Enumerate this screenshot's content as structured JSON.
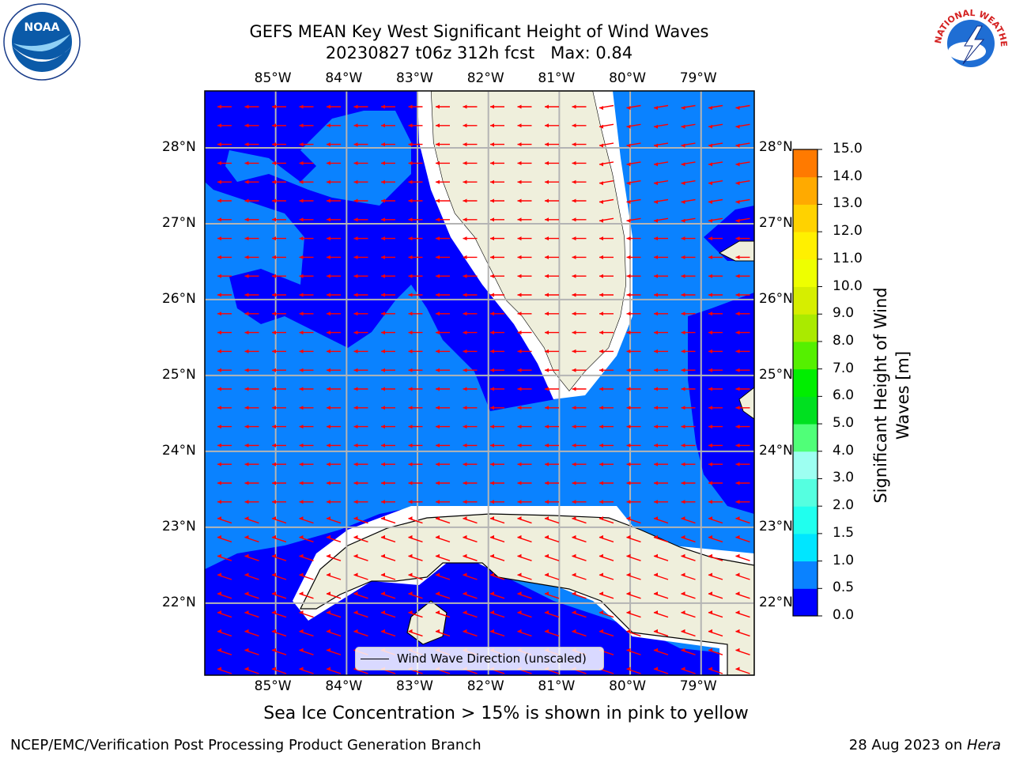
{
  "title": {
    "line1": "GEFS MEAN Key West Significant Height of Wind Waves",
    "line2": "20230827 t06z 312h fcst   Max: 0.84"
  },
  "map": {
    "lon_ticks": [
      "85°W",
      "84°W",
      "83°W",
      "82°W",
      "81°W",
      "80°W",
      "79°W"
    ],
    "lat_ticks": [
      "28°N",
      "27°N",
      "26°N",
      "25°N",
      "24°N",
      "23°N",
      "22°N"
    ],
    "lon_range": [
      -86.0,
      -78.25
    ],
    "lat_range": [
      21.05,
      28.75
    ],
    "colors": {
      "band_0_0_5": "#0000ff",
      "band_0_5_1_0": "#0a82ff",
      "land": "#efefdc",
      "arrow": "#ff0000",
      "grid": "#b4b4b4"
    }
  },
  "legend": {
    "label": "Wind Wave Direction (unscaled)"
  },
  "colorbar": {
    "label_line1": "Significant Height of Wind",
    "label_line2": "Waves [m]",
    "ticks": [
      "15.0",
      "14.0",
      "13.0",
      "12.0",
      "11.0",
      "10.0",
      "9.0",
      "8.0",
      "7.0",
      "6.0",
      "5.0",
      "4.0",
      "3.0",
      "2.0",
      "1.5",
      "1.0",
      "0.5",
      "0.0"
    ],
    "colors": [
      "#0000ff",
      "#0a82ff",
      "#00e6ff",
      "#20ffee",
      "#55ffe0",
      "#9dfff1",
      "#50ff78",
      "#00e020",
      "#00ee00",
      "#55f000",
      "#aaea00",
      "#d6ee00",
      "#eeff00",
      "#fff000",
      "#ffd200",
      "#ffaa00",
      "#ff7a00",
      "#ff4a00",
      "#ff1e00",
      "#ff0000"
    ]
  },
  "caption": "Sea Ice Concentration > 15% is shown in pink to yellow",
  "footer": {
    "left": "NCEP/EMC/Verification Post Processing Product Generation Branch",
    "right_date": "28 Aug 2023 on ",
    "right_host": "Hera"
  },
  "logos": {
    "left": "NOAA",
    "right": "NATIONAL WEATHER SERVICE"
  }
}
